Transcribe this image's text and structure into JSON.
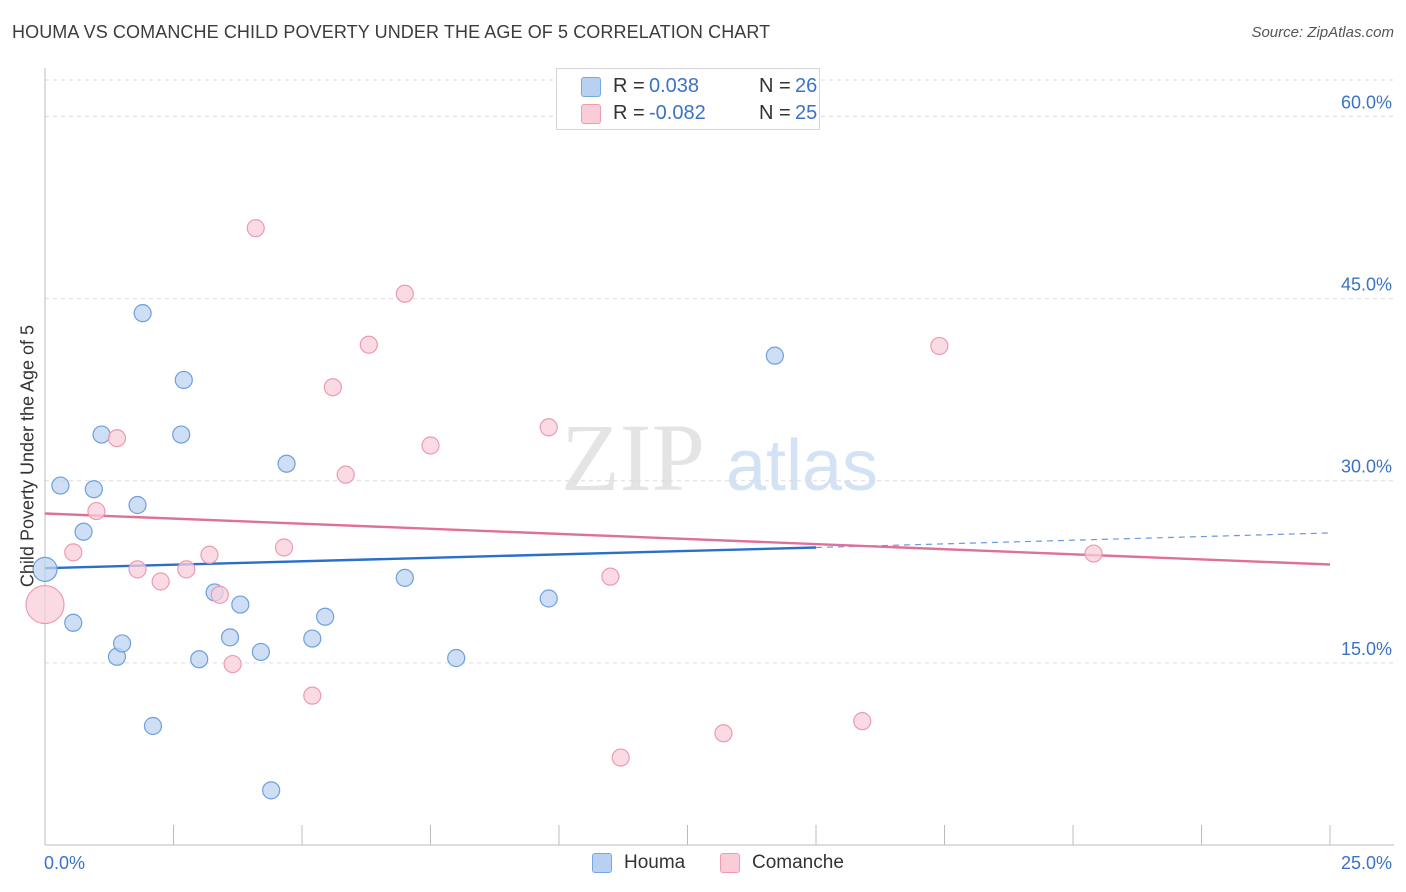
{
  "title": "HOUMA VS COMANCHE CHILD POVERTY UNDER THE AGE OF 5 CORRELATION CHART",
  "source": "Source: ZipAtlas.com",
  "watermark": {
    "zip": "ZIP",
    "atlas": "atlas"
  },
  "legend": {
    "r_label": "R =",
    "n_label": "N =",
    "rows": [
      {
        "r": "0.038",
        "n": "26",
        "fill": "#b8d1f3",
        "stroke": "#7aa7e2"
      },
      {
        "r": "-0.082",
        "n": "25",
        "fill": "#f9ccd8",
        "stroke": "#ee9bb3"
      }
    ]
  },
  "colors": {
    "houma_fill": "#bcd3f2",
    "houma_stroke": "#6f9fde",
    "houma_line": "#2a6fcb",
    "comanche_fill": "#f8cfdb",
    "comanche_stroke": "#ec9ab2",
    "comanche_line": "#e0709a",
    "tick_label": "#3a73c6",
    "grid": "#dcdcdc"
  },
  "chart_data": {
    "type": "scatter",
    "title": "HOUMA VS COMANCHE CHILD POVERTY UNDER THE AGE OF 5 CORRELATION CHART",
    "xlabel": "",
    "ylabel": "Child Poverty Under the Age of 5",
    "xlim": [
      0,
      25
    ],
    "ylim": [
      0,
      63
    ],
    "x_tick_labels": [
      "0.0%",
      "25.0%"
    ],
    "y_ticks": [
      15,
      30,
      45,
      60
    ],
    "y_tick_labels": [
      "15.0%",
      "30.0%",
      "45.0%",
      "60.0%"
    ],
    "grid": true,
    "legend_position": "bottom",
    "series": [
      {
        "name": "Houma",
        "points": [
          {
            "x": 0.0,
            "y": 22.7
          },
          {
            "x": 0.3,
            "y": 29.6
          },
          {
            "x": 0.55,
            "y": 18.3
          },
          {
            "x": 0.75,
            "y": 25.8
          },
          {
            "x": 0.95,
            "y": 29.3
          },
          {
            "x": 1.1,
            "y": 33.8
          },
          {
            "x": 1.4,
            "y": 15.5
          },
          {
            "x": 1.5,
            "y": 16.6
          },
          {
            "x": 1.8,
            "y": 28.0
          },
          {
            "x": 1.9,
            "y": 43.8
          },
          {
            "x": 2.1,
            "y": 9.8
          },
          {
            "x": 2.65,
            "y": 33.8
          },
          {
            "x": 2.7,
            "y": 38.3
          },
          {
            "x": 3.0,
            "y": 15.3
          },
          {
            "x": 3.3,
            "y": 20.8
          },
          {
            "x": 3.6,
            "y": 17.1
          },
          {
            "x": 3.8,
            "y": 19.8
          },
          {
            "x": 4.2,
            "y": 15.9
          },
          {
            "x": 4.4,
            "y": 4.5
          },
          {
            "x": 4.7,
            "y": 31.4
          },
          {
            "x": 5.2,
            "y": 17.0
          },
          {
            "x": 5.45,
            "y": 18.8
          },
          {
            "x": 7.0,
            "y": 22.0
          },
          {
            "x": 8.0,
            "y": 15.4
          },
          {
            "x": 9.8,
            "y": 20.3
          },
          {
            "x": 14.2,
            "y": 40.3
          }
        ],
        "trend": {
          "x": [
            0,
            15
          ],
          "y": [
            22.8,
            24.5
          ],
          "extended": {
            "x": [
              15,
              25
            ],
            "y": [
              24.5,
              25.7
            ]
          }
        }
      },
      {
        "name": "Comanche",
        "points": [
          {
            "x": 0.0,
            "y": 19.8
          },
          {
            "x": 0.55,
            "y": 24.1
          },
          {
            "x": 1.0,
            "y": 27.5
          },
          {
            "x": 1.4,
            "y": 33.5
          },
          {
            "x": 1.8,
            "y": 22.7
          },
          {
            "x": 2.25,
            "y": 21.7
          },
          {
            "x": 2.75,
            "y": 22.7
          },
          {
            "x": 3.2,
            "y": 23.9
          },
          {
            "x": 3.4,
            "y": 20.6
          },
          {
            "x": 3.65,
            "y": 14.9
          },
          {
            "x": 4.1,
            "y": 50.8
          },
          {
            "x": 4.65,
            "y": 24.5
          },
          {
            "x": 5.2,
            "y": 12.3
          },
          {
            "x": 5.6,
            "y": 37.7
          },
          {
            "x": 5.85,
            "y": 30.5
          },
          {
            "x": 6.3,
            "y": 41.2
          },
          {
            "x": 7.0,
            "y": 45.4
          },
          {
            "x": 7.5,
            "y": 32.9
          },
          {
            "x": 9.8,
            "y": 34.4
          },
          {
            "x": 11.0,
            "y": 22.1
          },
          {
            "x": 11.2,
            "y": 7.2
          },
          {
            "x": 13.2,
            "y": 9.2
          },
          {
            "x": 15.9,
            "y": 10.2
          },
          {
            "x": 17.4,
            "y": 41.1
          },
          {
            "x": 20.4,
            "y": 24.0
          }
        ],
        "trend": {
          "x": [
            0,
            25
          ],
          "y": [
            27.3,
            23.1
          ]
        }
      }
    ]
  }
}
